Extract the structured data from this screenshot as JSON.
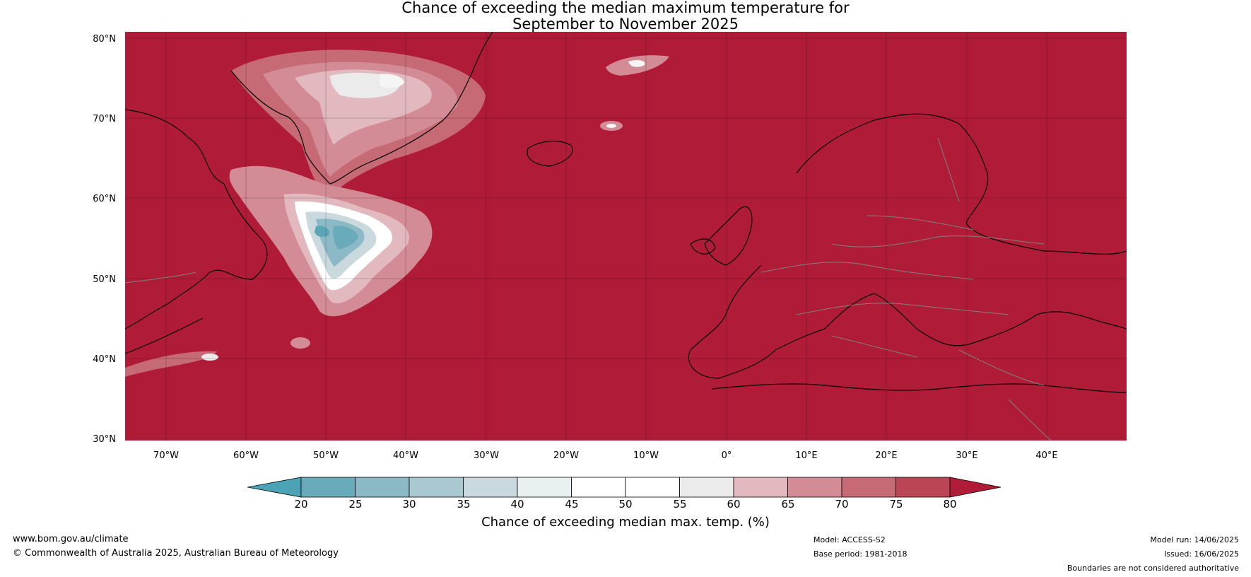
{
  "title": {
    "line1": "Chance of exceeding the median maximum temperature for",
    "line2": "September to November 2025"
  },
  "map": {
    "region": "North Atlantic and Europe",
    "lon_range": [
      -75,
      50
    ],
    "lat_range": [
      30,
      81
    ],
    "lat_labels": [
      "80°N",
      "70°N",
      "60°N",
      "50°N",
      "40°N",
      "30°N"
    ],
    "lon_labels": [
      "70°W",
      "60°W",
      "50°W",
      "40°W",
      "30°W",
      "20°W",
      "10°W",
      "0°",
      "10°E",
      "20°E",
      "30°E",
      "40°E"
    ],
    "background_color": "#b01c38",
    "coastline_color": "#000000",
    "border_color": "#808080"
  },
  "colorbar": {
    "label": "Chance of exceeding median max. temp. (%)",
    "ticks": [
      "20",
      "25",
      "30",
      "35",
      "40",
      "45",
      "50",
      "55",
      "60",
      "65",
      "70",
      "75",
      "80"
    ],
    "under_color": "#4ba3b5",
    "over_color": "#b01c38",
    "colors": [
      "#6aabbb",
      "#8bbac6",
      "#aac8d0",
      "#c9d9dd",
      "#e8f0f1",
      "#ffffff",
      "#ffffff",
      "#ecebec",
      "#e2b9bf",
      "#d38b95",
      "#c66a76",
      "#b94555"
    ]
  },
  "footer": {
    "website": "www.bom.gov.au/climate",
    "copyright": "© Commonwealth of Australia 2025, Australian Bureau of Meteorology",
    "model": "Model: ACCESS-S2",
    "base_period": "Base period: 1981-2018",
    "model_run": "Model run: 14/06/2025",
    "issued": "Issued: 16/06/2025",
    "disclaimer": "Boundaries are not considered authoritative"
  }
}
